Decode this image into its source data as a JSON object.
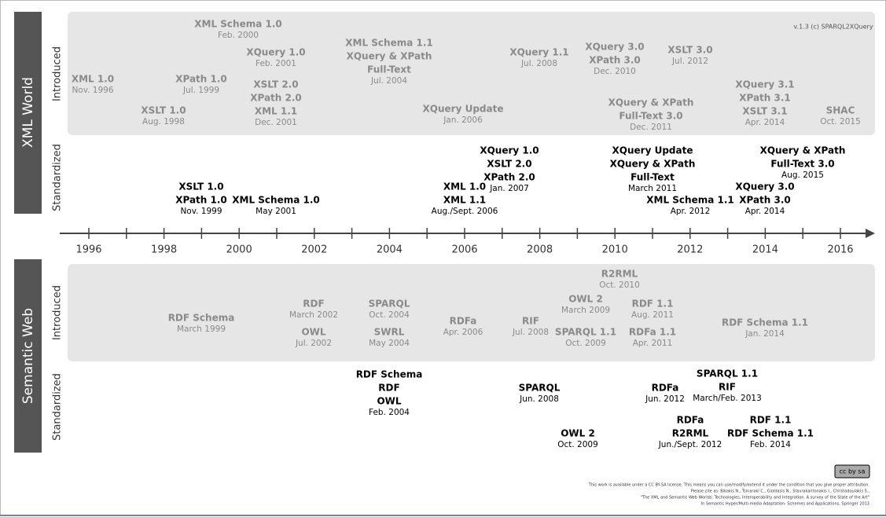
{
  "version": "v.1.3 (c) SPARQL2XQuery",
  "sections": [
    {
      "title": "XML World",
      "rows": [
        {
          "label": "Introduced",
          "items": [
            {
              "lines": [
                "XML 1.0"
              ],
              "date": "Nov. 1996"
            },
            {
              "lines": [
                "XSLT 1.0"
              ],
              "date": "Aug. 1998"
            },
            {
              "lines": [
                "XML Schema 1.0"
              ],
              "date": "Feb. 2000"
            },
            {
              "lines": [
                "XPath 1.0"
              ],
              "date": "Jul. 1999"
            },
            {
              "lines": [
                "XQuery 1.0"
              ],
              "date": "Feb. 2001"
            },
            {
              "lines": [
                "XSLT 2.0",
                "XPath 2.0",
                "XML 1.1"
              ],
              "date": "Dec. 2001"
            },
            {
              "lines": [
                "XML Schema 1.1",
                "XQuery & XPath",
                "Full-Text"
              ],
              "date": "Jul. 2004"
            },
            {
              "lines": [
                "XQuery Update"
              ],
              "date": "Jan. 2006"
            },
            {
              "lines": [
                "XQuery 1.1"
              ],
              "date": "Jul. 2008"
            },
            {
              "lines": [
                "XQuery 3.0",
                "XPath 3.0"
              ],
              "date": "Dec. 2010"
            },
            {
              "lines": [
                "XSLT 3.0"
              ],
              "date": "Jul. 2012"
            },
            {
              "lines": [
                "XQuery & XPath",
                "Full-Text 3.0"
              ],
              "date": "Dec. 2011"
            },
            {
              "lines": [
                "XQuery 3.1",
                "XPath 3.1",
                "XSLT 3.1"
              ],
              "date": "Apr. 2014"
            },
            {
              "lines": [
                "SHAC"
              ],
              "date": "Oct. 2015"
            }
          ]
        },
        {
          "label": "Standardized",
          "items": [
            {
              "lines": [
                "XSLT 1.0",
                "XPath 1.0"
              ],
              "date": "Nov. 1999"
            },
            {
              "lines": [
                "XML Schema 1.0"
              ],
              "date": "May 2001"
            },
            {
              "lines": [
                "XML 1.0",
                "XML 1.1"
              ],
              "date": "Aug./Sept. 2006"
            },
            {
              "lines": [
                "XQuery 1.0",
                "XSLT 2.0",
                "XPath 2.0"
              ],
              "date": "Jan. 2007"
            },
            {
              "lines": [
                "XQuery Update",
                "XQuery & XPath",
                "Full-Text"
              ],
              "date": "March 2011"
            },
            {
              "lines": [
                "XML Schema 1.1"
              ],
              "date": "Apr. 2012"
            },
            {
              "lines": [
                "XQuery 3.0",
                "XPath 3.0"
              ],
              "date": "Apr. 2014"
            },
            {
              "lines": [
                "XQuery & XPath",
                "Full-Text 3.0"
              ],
              "date": "Aug. 2015"
            }
          ]
        }
      ]
    },
    {
      "title": "Semantic Web",
      "rows": [
        {
          "label": "Introduced",
          "items": [
            {
              "lines": [
                "RDF Schema"
              ],
              "date": "March 1999"
            },
            {
              "lines": [
                "RDF"
              ],
              "date": "March 2002"
            },
            {
              "lines": [
                "OWL"
              ],
              "date": "Jul. 2002"
            },
            {
              "lines": [
                "SPARQL"
              ],
              "date": "Oct. 2004"
            },
            {
              "lines": [
                "SWRL"
              ],
              "date": "May 2004"
            },
            {
              "lines": [
                "RDFa"
              ],
              "date": "Apr. 2006"
            },
            {
              "lines": [
                "RIF"
              ],
              "date": "Jul. 2008"
            },
            {
              "lines": [
                "OWL 2"
              ],
              "date": "March 2009"
            },
            {
              "lines": [
                "R2RML"
              ],
              "date": "Oct. 2010"
            },
            {
              "lines": [
                "SPARQL 1.1"
              ],
              "date": "Oct. 2009"
            },
            {
              "lines": [
                "RDF 1.1"
              ],
              "date": "Aug. 2011"
            },
            {
              "lines": [
                "RDFa 1.1"
              ],
              "date": "Apr. 2011"
            },
            {
              "lines": [
                "RDF Schema 1.1"
              ],
              "date": "Jan. 2014"
            }
          ]
        },
        {
          "label": "Standardized",
          "items": [
            {
              "lines": [
                "RDF Schema",
                "RDF",
                "OWL"
              ],
              "date": "Feb. 2004"
            },
            {
              "lines": [
                "SPARQL"
              ],
              "date": "Jun. 2008"
            },
            {
              "lines": [
                "OWL 2"
              ],
              "date": "Oct. 2009"
            },
            {
              "lines": [
                "RDFa"
              ],
              "date": "Jun. 2012"
            },
            {
              "lines": [
                "SPARQL 1.1",
                "RIF"
              ],
              "date": "March/Feb. 2013"
            },
            {
              "lines": [
                "RDFa",
                "R2RML"
              ],
              "date": "Jun./Sept. 2012"
            },
            {
              "lines": [
                "RDF 1.1",
                "RDF Schema 1.1"
              ],
              "date": "Feb. 2014"
            }
          ]
        }
      ]
    }
  ],
  "axis": {
    "years": [
      "1996",
      "1998",
      "2000",
      "2002",
      "2004",
      "2006",
      "2008",
      "2010",
      "2012",
      "2014",
      "2016"
    ]
  },
  "license": {
    "badge": "cc by sa",
    "lines": [
      "This work is available under a CC BY-SA license. This means you can use/modify/extend it under the condition that you give proper attribution.",
      "Please cite as: Bikakis N., Tsinaraki C., Gioldasis N., Stavrakantonakis I., Christodoulakis S.,",
      "\"The XML and Semantic Web Worlds: Technologies, Interoperability and Integration. A survey of the State of the Art\"",
      "In Semantic Hyper/Multi-media Adaptation: Schemes and Applications, Springer 2013"
    ]
  }
}
